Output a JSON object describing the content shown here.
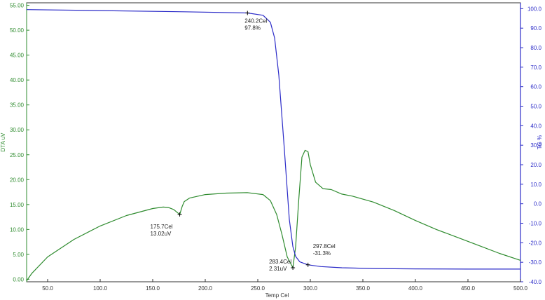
{
  "chart_data": {
    "type": "line",
    "title": "",
    "xlabel": "Temp Cel",
    "xlim": [
      30,
      500
    ],
    "x_ticks": [
      "50.0",
      "100.0",
      "150.0",
      "200.0",
      "250.0",
      "300.0",
      "350.0",
      "400.0",
      "450.0",
      "500.0"
    ],
    "y_left": {
      "label": "DTA uV",
      "lim": [
        -0.5,
        55.5
      ],
      "color": "#2e8b2e",
      "ticks": [
        "0.00",
        "5.00",
        "10.00",
        "15.00",
        "20.00",
        "25.00",
        "30.00",
        "35.00",
        "40.00",
        "45.00",
        "50.00",
        "55.00"
      ]
    },
    "y_right": {
      "label": "TG %",
      "lim": [
        -40,
        103
      ],
      "color": "#2b2bc8",
      "ticks": [
        "-40.0",
        "-30.0",
        "-20.0",
        "-10.0",
        "0.0",
        "10.0",
        "20.0",
        "30.0",
        "40.0",
        "50.0",
        "60.0",
        "70.0",
        "80.0",
        "90.0",
        "100.0"
      ]
    },
    "series": [
      {
        "axis": "left",
        "color": "#2e8b2e",
        "x": [
          30,
          35,
          50,
          75,
          100,
          125,
          150,
          160,
          165,
          170,
          175.7,
          178,
          180,
          185,
          200,
          220,
          240,
          255,
          262,
          268,
          273,
          278,
          283.4,
          286,
          289,
          292,
          295,
          297.8,
          300,
          305,
          312,
          320,
          330,
          340,
          360,
          380,
          400,
          420,
          440,
          460,
          480,
          500
        ],
        "y": [
          -0.3,
          1.2,
          4.5,
          8.0,
          10.7,
          12.8,
          14.2,
          14.5,
          14.4,
          14.0,
          13.0,
          14.6,
          15.6,
          16.3,
          17.0,
          17.3,
          17.4,
          17.0,
          15.8,
          13.0,
          9.0,
          4.5,
          2.31,
          6.5,
          16.0,
          24.5,
          25.9,
          25.6,
          23.0,
          19.5,
          18.2,
          18.0,
          17.1,
          16.7,
          15.5,
          13.8,
          11.8,
          10.0,
          8.4,
          6.8,
          5.2,
          3.8
        ]
      },
      {
        "axis": "right",
        "color": "#2b2bc8",
        "x": [
          30,
          100,
          180,
          240.2,
          255,
          262,
          266,
          270,
          275,
          280,
          283.4,
          286,
          290,
          297.8,
          310,
          330,
          360,
          400,
          450,
          500
        ],
        "y": [
          99.5,
          99.0,
          98.4,
          97.8,
          96.6,
          93.0,
          85.0,
          66.0,
          30.0,
          -8.0,
          -22.0,
          -27.0,
          -29.8,
          -31.3,
          -32.2,
          -32.8,
          -33.2,
          -33.4,
          -33.5,
          -33.5
        ]
      }
    ],
    "annotations": [
      {
        "axis": "right",
        "x": 240.2,
        "y": 97.8,
        "lines": [
          "240.2Cel",
          "97.8%"
        ]
      },
      {
        "axis": "left",
        "x": 175.7,
        "y": 13.02,
        "lines": [
          "175.7Cel",
          "13.02uV"
        ]
      },
      {
        "axis": "left",
        "x": 283.4,
        "y": 2.31,
        "lines": [
          "283.4Cel",
          "2.31uV"
        ]
      },
      {
        "axis": "right",
        "x": 297.8,
        "y": -31.3,
        "lines": [
          "297.8Cel",
          "-31.3%"
        ]
      }
    ],
    "grid": false,
    "legend": "none"
  }
}
